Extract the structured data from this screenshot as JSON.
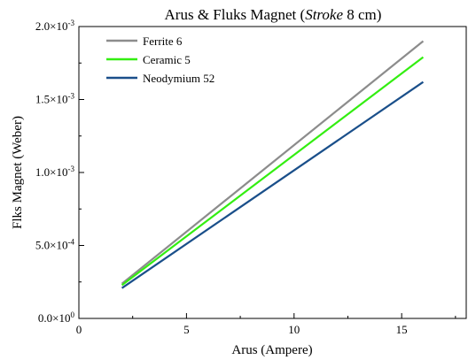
{
  "chart_data": {
    "type": "line",
    "title": {
      "prefix": "Arus & Fluks Magnet (",
      "italic": "Stroke",
      "suffix": " 8 cm)"
    },
    "xlabel": "Arus (Ampere)",
    "ylabel": "Flks Magnet (Weber)",
    "xlim": [
      0,
      18
    ],
    "ylim": [
      0,
      0.002
    ],
    "xticks": [
      {
        "value": 0,
        "label": "0"
      },
      {
        "value": 5,
        "label": "5"
      },
      {
        "value": 10,
        "label": "10"
      },
      {
        "value": 15,
        "label": "15"
      }
    ],
    "yticks": [
      {
        "value": 0,
        "mantissa": "0.0×10",
        "exp": "0"
      },
      {
        "value": 0.0005,
        "mantissa": "5.0×10",
        "exp": "-4"
      },
      {
        "value": 0.001,
        "mantissa": "1.0×10",
        "exp": "-3"
      },
      {
        "value": 0.0015,
        "mantissa": "1.5×10",
        "exp": "-3"
      },
      {
        "value": 0.002,
        "mantissa": "2.0×10",
        "exp": "-3"
      }
    ],
    "legend_position": "top-left",
    "grid": false,
    "series": [
      {
        "name": "Ferrite 6",
        "color": "#8c8c8c",
        "x": [
          2,
          16
        ],
        "y": [
          0.000238,
          0.0019
        ]
      },
      {
        "name": "Ceramic 5",
        "color": "#33ee11",
        "x": [
          2,
          16
        ],
        "y": [
          0.000228,
          0.00179
        ]
      },
      {
        "name": "Neodymium 52",
        "color": "#1a4f8a",
        "x": [
          2,
          16
        ],
        "y": [
          0.000208,
          0.00162
        ]
      }
    ]
  }
}
